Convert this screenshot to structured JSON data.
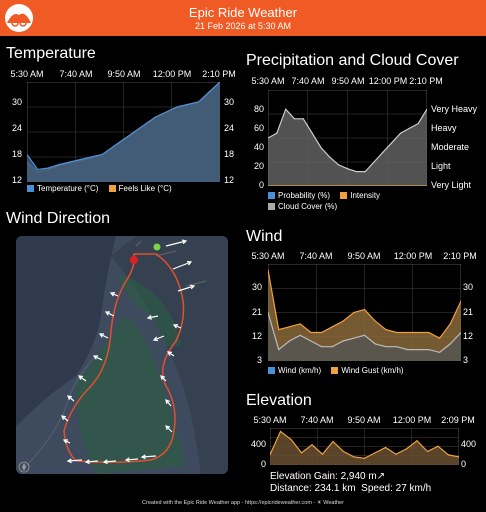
{
  "header": {
    "title": "Epic Ride Weather",
    "subtitle": "21 Feb 2026 at 5:30 AM",
    "bg_color": "#f05a24",
    "logo_icon": "cyclist-logo-icon"
  },
  "time_ticks": [
    "5:30 AM",
    "7:40 AM",
    "9:50 AM",
    "12:00 PM",
    "2:10 PM"
  ],
  "temperature": {
    "title": "Temperature",
    "y_ticks": [
      "30",
      "24",
      "18",
      "12"
    ],
    "legend": [
      "Temperature (°C)",
      "Feels Like (°C)"
    ],
    "colors": {
      "temperature": "#4a90d9",
      "feels_like": "#f0a040"
    }
  },
  "precipitation": {
    "title": "Precipitation and Cloud Cover",
    "y_ticks": [
      "80",
      "60",
      "40",
      "20",
      "0"
    ],
    "intensity_levels": [
      "Very Heavy",
      "Heavy",
      "Moderate",
      "Light",
      "Very Light"
    ],
    "legend": [
      "Probability (%)",
      "Intensity",
      "Cloud Cover (%)"
    ],
    "colors": {
      "probability": "#4a90d9",
      "intensity": "#f0a040",
      "cloud": "#aaaaaa"
    }
  },
  "wind_direction": {
    "title": "Wind Direction",
    "compass_icon": "compass-icon"
  },
  "wind": {
    "title": "Wind",
    "y_ticks": [
      "30",
      "21",
      "12",
      "3"
    ],
    "legend": [
      "Wind (km/h)",
      "Wind Gust (km/h)"
    ]
  },
  "elevation": {
    "title": "Elevation",
    "time_ticks": [
      "5:30 AM",
      "7:40 AM",
      "9:50 AM",
      "12:00 PM",
      "2:09 PM"
    ],
    "y_ticks": [
      "400",
      "0"
    ],
    "gain_label": "Elevation Gain: 2,940 m",
    "gain_icon": "up-arrow-icon",
    "distance_label": "Distance: 234.1 km",
    "speed_label": "Speed: 27 km/h"
  },
  "footer": {
    "text": "Created with the Epic Ride Weather app - https://epicrideweather.com - ☀ Weather"
  },
  "chart_data": [
    {
      "type": "area",
      "title": "Temperature",
      "x": [
        "5:30 AM",
        "6:00 AM",
        "6:30 AM",
        "7:00 AM",
        "7:30 AM",
        "8:00 AM",
        "8:30 AM",
        "9:00 AM",
        "9:30 AM",
        "10:00 AM",
        "10:30 AM",
        "11:00 AM",
        "11:30 AM",
        "12:00 PM",
        "12:30 PM",
        "1:00 PM",
        "1:30 PM",
        "2:00 PM",
        "2:10 PM"
      ],
      "ylim": [
        12,
        32
      ],
      "series": [
        {
          "name": "Temperature (°C)",
          "values": [
            17.5,
            14.5,
            14.8,
            15.5,
            16,
            16.5,
            17,
            17.5,
            19,
            20.5,
            22,
            23.5,
            25,
            26,
            27,
            27.5,
            28,
            30,
            32
          ]
        },
        {
          "name": "Feels Like (°C)",
          "values": [
            16,
            14,
            14.5,
            15.3,
            15.8,
            16.3,
            16.8,
            17.4,
            19,
            20.5,
            22,
            23.5,
            25,
            26,
            27,
            27.5,
            28,
            30,
            32
          ]
        }
      ]
    },
    {
      "type": "area",
      "title": "Precipitation and Cloud Cover",
      "x": [
        "5:30 AM",
        "6:00 AM",
        "6:30 AM",
        "7:00 AM",
        "7:30 AM",
        "8:00 AM",
        "8:30 AM",
        "9:00 AM",
        "9:30 AM",
        "10:00 AM",
        "10:30 AM",
        "11:00 AM",
        "11:30 AM",
        "12:00 PM",
        "12:30 PM",
        "1:00 PM",
        "1:30 PM",
        "2:00 PM",
        "2:10 PM"
      ],
      "ylim": [
        0,
        100
      ],
      "series": [
        {
          "name": "Cloud Cover (%)",
          "values": [
            50,
            55,
            80,
            70,
            70,
            55,
            40,
            30,
            22,
            18,
            15,
            15,
            25,
            35,
            45,
            55,
            60,
            65,
            80
          ]
        },
        {
          "name": "Probability (%)",
          "values": [
            0,
            0,
            0,
            0,
            0,
            0,
            0,
            0,
            0,
            0,
            0,
            0,
            0,
            0,
            0,
            0,
            0,
            0,
            0
          ]
        },
        {
          "name": "Intensity",
          "values": [
            0,
            0,
            0,
            0,
            0,
            0,
            0,
            0,
            0,
            0,
            0,
            0,
            0,
            0,
            0,
            0,
            0,
            0,
            0
          ]
        }
      ]
    },
    {
      "type": "area",
      "title": "Wind",
      "x": [
        "5:30 AM",
        "6:00 AM",
        "6:30 AM",
        "7:00 AM",
        "7:30 AM",
        "8:00 AM",
        "8:30 AM",
        "9:00 AM",
        "9:30 AM",
        "10:00 AM",
        "10:30 AM",
        "11:00 AM",
        "11:30 AM",
        "12:00 PM",
        "12:30 PM",
        "1:00 PM",
        "1:30 PM",
        "2:00 PM",
        "2:10 PM"
      ],
      "ylim": [
        3,
        37
      ],
      "series": [
        {
          "name": "Wind (km/h)",
          "values": [
            20,
            7,
            10,
            12,
            10,
            8,
            8,
            10,
            11,
            12,
            9,
            8,
            8,
            7,
            7,
            7,
            6,
            9,
            13
          ]
        },
        {
          "name": "Wind Gust (km/h)",
          "values": [
            35,
            14,
            15,
            16,
            13,
            13,
            15,
            17,
            20,
            21,
            17,
            14,
            13,
            13,
            13,
            13,
            11,
            16,
            24
          ]
        }
      ]
    },
    {
      "type": "area",
      "title": "Elevation",
      "x": [
        "5:30 AM",
        "6:00 AM",
        "6:30 AM",
        "7:00 AM",
        "7:30 AM",
        "8:00 AM",
        "8:30 AM",
        "9:00 AM",
        "9:30 AM",
        "10:00 AM",
        "10:30 AM",
        "11:00 AM",
        "11:30 AM",
        "12:00 PM",
        "12:30 PM",
        "1:00 PM",
        "1:30 PM",
        "2:00 PM",
        "2:09 PM"
      ],
      "ylim": [
        0,
        550
      ],
      "series": [
        {
          "name": "Elevation",
          "values": [
            150,
            500,
            380,
            180,
            300,
            160,
            350,
            200,
            120,
            100,
            180,
            260,
            160,
            240,
            360,
            200,
            280,
            150,
            120
          ]
        }
      ]
    }
  ]
}
